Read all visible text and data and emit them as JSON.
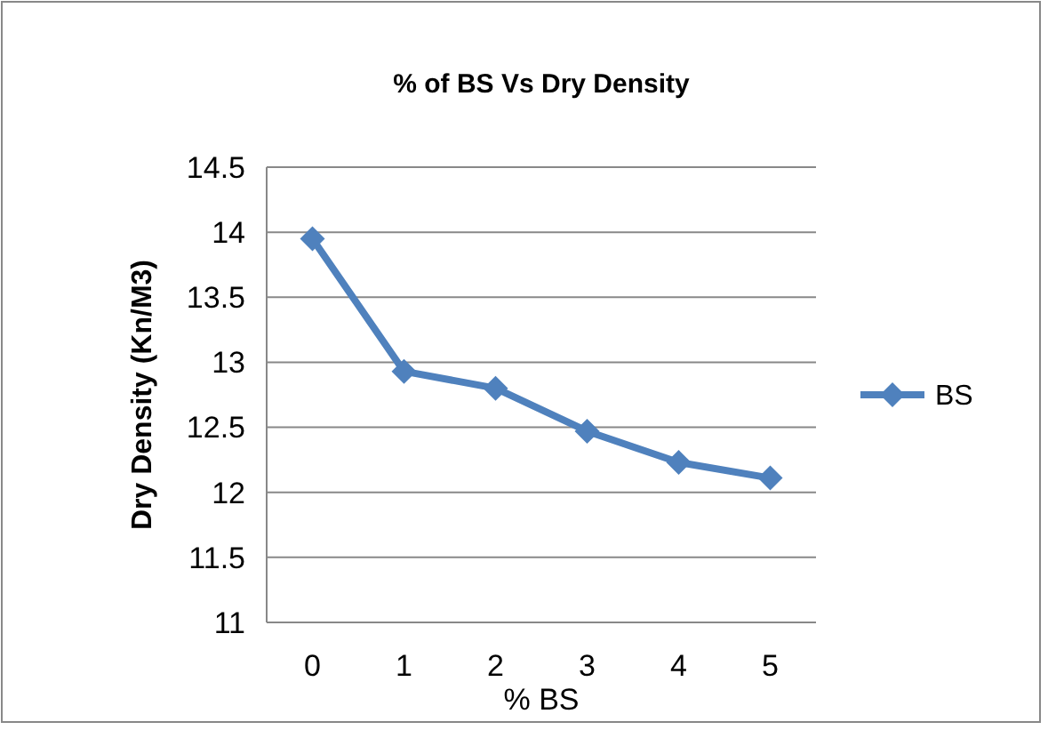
{
  "chart_data": {
    "type": "line",
    "title": "% of BS Vs Dry Density",
    "xlabel": "% BS",
    "ylabel": "Dry  Density (Kn/M3)",
    "categories": [
      "0",
      "1",
      "2",
      "3",
      "4",
      "5"
    ],
    "series": [
      {
        "name": "BS",
        "color": "#4f81bd",
        "values": [
          13.95,
          12.93,
          12.8,
          12.47,
          12.23,
          12.11
        ]
      }
    ],
    "ylim": [
      11,
      14.5
    ],
    "yticks": [
      11,
      11.5,
      12,
      12.5,
      13,
      13.5,
      14,
      14.5
    ],
    "grid": "y",
    "legend": "right",
    "marker": "diamond",
    "line_style": "solid"
  }
}
